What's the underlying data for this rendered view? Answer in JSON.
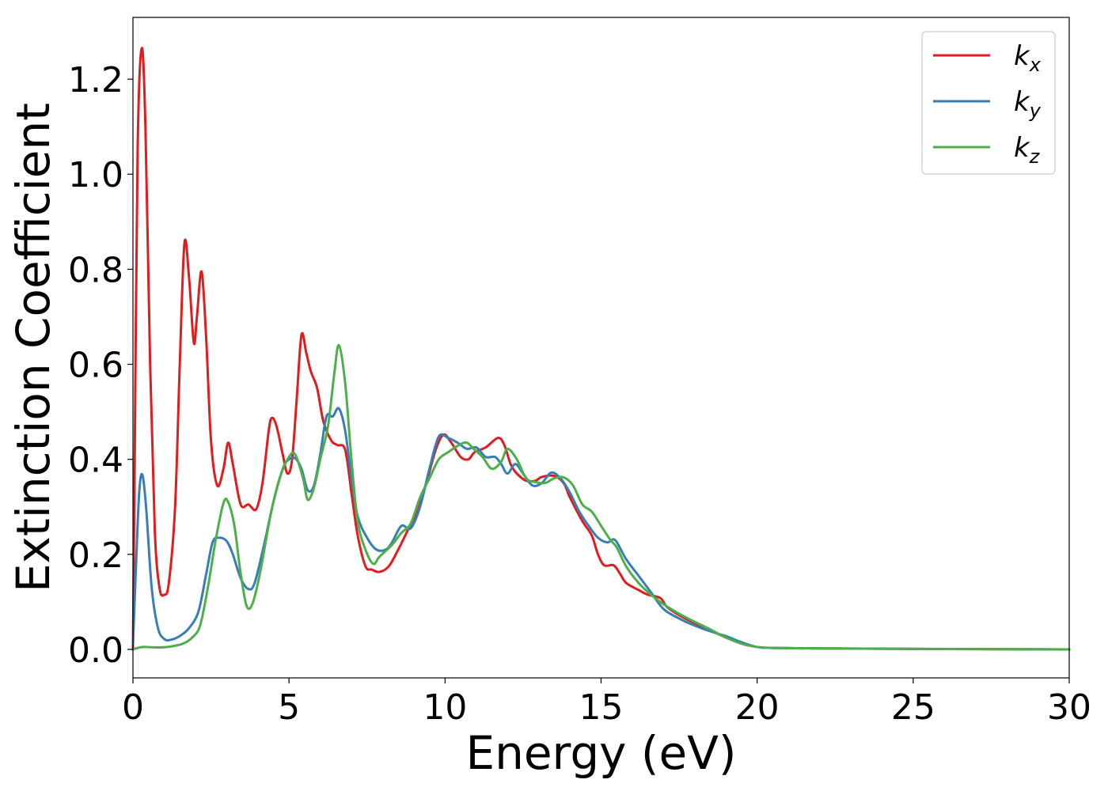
{
  "chart_data": {
    "type": "line",
    "title": "",
    "xlabel": "Energy (eV)",
    "ylabel": "Extinction Coefficient",
    "xlim": [
      0,
      30
    ],
    "ylim": [
      -0.06,
      1.33
    ],
    "xticks": [
      0,
      5,
      10,
      15,
      20,
      25,
      30
    ],
    "xtick_labels": [
      "0",
      "5",
      "10",
      "15",
      "20",
      "25",
      "30"
    ],
    "yticks": [
      0.0,
      0.2,
      0.4,
      0.6,
      0.8,
      1.0,
      1.2
    ],
    "ytick_labels": [
      "0.0",
      "0.2",
      "0.4",
      "0.6",
      "0.8",
      "1.0",
      "1.2"
    ],
    "grid": false,
    "legend_position": "top-right",
    "series": [
      {
        "name": "k_x",
        "legend_main": "k",
        "legend_sub": "x",
        "color": "#e41a1c",
        "points": [
          [
            0,
            0.0
          ],
          [
            0.05,
            0.35
          ],
          [
            0.15,
            1.05
          ],
          [
            0.28,
            1.265
          ],
          [
            0.4,
            1.1
          ],
          [
            0.55,
            0.6
          ],
          [
            0.7,
            0.25
          ],
          [
            0.85,
            0.13
          ],
          [
            1.0,
            0.115
          ],
          [
            1.15,
            0.14
          ],
          [
            1.35,
            0.3
          ],
          [
            1.5,
            0.6
          ],
          [
            1.65,
            0.855
          ],
          [
            1.8,
            0.78
          ],
          [
            1.95,
            0.645
          ],
          [
            2.05,
            0.7
          ],
          [
            2.2,
            0.795
          ],
          [
            2.35,
            0.65
          ],
          [
            2.5,
            0.44
          ],
          [
            2.7,
            0.345
          ],
          [
            2.9,
            0.38
          ],
          [
            3.05,
            0.435
          ],
          [
            3.2,
            0.39
          ],
          [
            3.45,
            0.305
          ],
          [
            3.7,
            0.305
          ],
          [
            3.95,
            0.295
          ],
          [
            4.15,
            0.35
          ],
          [
            4.35,
            0.46
          ],
          [
            4.45,
            0.487
          ],
          [
            4.6,
            0.47
          ],
          [
            4.8,
            0.41
          ],
          [
            4.95,
            0.37
          ],
          [
            5.1,
            0.4
          ],
          [
            5.25,
            0.53
          ],
          [
            5.4,
            0.662
          ],
          [
            5.55,
            0.625
          ],
          [
            5.7,
            0.585
          ],
          [
            5.9,
            0.55
          ],
          [
            6.1,
            0.48
          ],
          [
            6.35,
            0.44
          ],
          [
            6.55,
            0.43
          ],
          [
            6.8,
            0.42
          ],
          [
            7.0,
            0.33
          ],
          [
            7.2,
            0.24
          ],
          [
            7.45,
            0.175
          ],
          [
            7.65,
            0.168
          ],
          [
            7.9,
            0.163
          ],
          [
            8.2,
            0.175
          ],
          [
            8.5,
            0.21
          ],
          [
            8.8,
            0.25
          ],
          [
            9.1,
            0.29
          ],
          [
            9.4,
            0.35
          ],
          [
            9.7,
            0.42
          ],
          [
            9.95,
            0.452
          ],
          [
            10.2,
            0.435
          ],
          [
            10.5,
            0.405
          ],
          [
            10.75,
            0.4
          ],
          [
            10.95,
            0.415
          ],
          [
            11.3,
            0.425
          ],
          [
            11.7,
            0.445
          ],
          [
            11.9,
            0.43
          ],
          [
            12.1,
            0.39
          ],
          [
            12.3,
            0.37
          ],
          [
            12.6,
            0.355
          ],
          [
            12.9,
            0.355
          ],
          [
            13.1,
            0.363
          ],
          [
            13.5,
            0.365
          ],
          [
            13.8,
            0.35
          ],
          [
            14.0,
            0.32
          ],
          [
            14.4,
            0.27
          ],
          [
            14.7,
            0.24
          ],
          [
            14.9,
            0.2
          ],
          [
            15.1,
            0.177
          ],
          [
            15.4,
            0.177
          ],
          [
            15.6,
            0.16
          ],
          [
            15.8,
            0.14
          ],
          [
            16.2,
            0.125
          ],
          [
            16.5,
            0.115
          ],
          [
            16.9,
            0.108
          ],
          [
            17.1,
            0.09
          ],
          [
            17.5,
            0.072
          ],
          [
            18.0,
            0.055
          ],
          [
            18.5,
            0.04
          ],
          [
            19.0,
            0.025
          ],
          [
            19.5,
            0.012
          ],
          [
            20.0,
            0.005
          ],
          [
            20.5,
            0.003
          ],
          [
            22,
            0.002
          ],
          [
            25,
            0.001
          ],
          [
            30,
            0.0
          ]
        ]
      },
      {
        "name": "k_y",
        "legend_main": "k",
        "legend_sub": "y",
        "color": "#377eb8",
        "points": [
          [
            0,
            0.01
          ],
          [
            0.1,
            0.18
          ],
          [
            0.2,
            0.33
          ],
          [
            0.3,
            0.368
          ],
          [
            0.42,
            0.3
          ],
          [
            0.6,
            0.13
          ],
          [
            0.8,
            0.045
          ],
          [
            1.0,
            0.022
          ],
          [
            1.2,
            0.02
          ],
          [
            1.5,
            0.028
          ],
          [
            1.8,
            0.045
          ],
          [
            2.1,
            0.08
          ],
          [
            2.35,
            0.16
          ],
          [
            2.55,
            0.225
          ],
          [
            2.75,
            0.235
          ],
          [
            3.0,
            0.228
          ],
          [
            3.2,
            0.2
          ],
          [
            3.45,
            0.15
          ],
          [
            3.7,
            0.127
          ],
          [
            3.9,
            0.14
          ],
          [
            4.2,
            0.22
          ],
          [
            4.5,
            0.31
          ],
          [
            4.8,
            0.38
          ],
          [
            5.0,
            0.4
          ],
          [
            5.2,
            0.402
          ],
          [
            5.4,
            0.38
          ],
          [
            5.6,
            0.335
          ],
          [
            5.8,
            0.345
          ],
          [
            6.0,
            0.41
          ],
          [
            6.2,
            0.49
          ],
          [
            6.4,
            0.49
          ],
          [
            6.6,
            0.507
          ],
          [
            6.8,
            0.46
          ],
          [
            7.0,
            0.36
          ],
          [
            7.2,
            0.28
          ],
          [
            7.5,
            0.235
          ],
          [
            7.8,
            0.21
          ],
          [
            8.1,
            0.21
          ],
          [
            8.3,
            0.225
          ],
          [
            8.6,
            0.26
          ],
          [
            8.9,
            0.255
          ],
          [
            9.2,
            0.3
          ],
          [
            9.5,
            0.38
          ],
          [
            9.8,
            0.448
          ],
          [
            10.1,
            0.445
          ],
          [
            10.4,
            0.435
          ],
          [
            10.7,
            0.422
          ],
          [
            11.0,
            0.425
          ],
          [
            11.3,
            0.405
          ],
          [
            11.6,
            0.405
          ],
          [
            11.8,
            0.39
          ],
          [
            12.0,
            0.37
          ],
          [
            12.25,
            0.39
          ],
          [
            12.5,
            0.37
          ],
          [
            12.8,
            0.345
          ],
          [
            13.1,
            0.35
          ],
          [
            13.4,
            0.372
          ],
          [
            13.7,
            0.36
          ],
          [
            14.0,
            0.33
          ],
          [
            14.3,
            0.29
          ],
          [
            14.6,
            0.26
          ],
          [
            14.9,
            0.235
          ],
          [
            15.2,
            0.225
          ],
          [
            15.45,
            0.23
          ],
          [
            15.8,
            0.19
          ],
          [
            16.2,
            0.155
          ],
          [
            16.6,
            0.12
          ],
          [
            17.0,
            0.085
          ],
          [
            17.5,
            0.065
          ],
          [
            18.0,
            0.05
          ],
          [
            18.5,
            0.038
          ],
          [
            19.0,
            0.028
          ],
          [
            19.5,
            0.015
          ],
          [
            20.0,
            0.005
          ],
          [
            20.5,
            0.003
          ],
          [
            22,
            0.002
          ],
          [
            25,
            0.001
          ],
          [
            30,
            0.0
          ]
        ]
      },
      {
        "name": "k_z",
        "legend_main": "k",
        "legend_sub": "z",
        "color": "#4daf4a",
        "points": [
          [
            0,
            0.0
          ],
          [
            0.3,
            0.005
          ],
          [
            0.8,
            0.004
          ],
          [
            1.2,
            0.006
          ],
          [
            1.6,
            0.012
          ],
          [
            1.9,
            0.025
          ],
          [
            2.15,
            0.05
          ],
          [
            2.4,
            0.13
          ],
          [
            2.65,
            0.23
          ],
          [
            2.9,
            0.308
          ],
          [
            3.05,
            0.31
          ],
          [
            3.25,
            0.26
          ],
          [
            3.45,
            0.16
          ],
          [
            3.65,
            0.09
          ],
          [
            3.85,
            0.1
          ],
          [
            4.1,
            0.17
          ],
          [
            4.4,
            0.28
          ],
          [
            4.7,
            0.36
          ],
          [
            5.0,
            0.405
          ],
          [
            5.2,
            0.41
          ],
          [
            5.45,
            0.36
          ],
          [
            5.6,
            0.315
          ],
          [
            5.8,
            0.34
          ],
          [
            6.0,
            0.4
          ],
          [
            6.25,
            0.47
          ],
          [
            6.45,
            0.58
          ],
          [
            6.6,
            0.64
          ],
          [
            6.8,
            0.56
          ],
          [
            7.0,
            0.4
          ],
          [
            7.2,
            0.27
          ],
          [
            7.45,
            0.21
          ],
          [
            7.7,
            0.18
          ],
          [
            7.9,
            0.195
          ],
          [
            8.3,
            0.22
          ],
          [
            8.6,
            0.245
          ],
          [
            8.9,
            0.265
          ],
          [
            9.2,
            0.32
          ],
          [
            9.5,
            0.36
          ],
          [
            9.8,
            0.4
          ],
          [
            10.1,
            0.415
          ],
          [
            10.45,
            0.43
          ],
          [
            10.7,
            0.435
          ],
          [
            10.95,
            0.42
          ],
          [
            11.2,
            0.405
          ],
          [
            11.5,
            0.38
          ],
          [
            11.8,
            0.395
          ],
          [
            12.0,
            0.422
          ],
          [
            12.3,
            0.4
          ],
          [
            12.6,
            0.36
          ],
          [
            12.9,
            0.352
          ],
          [
            13.2,
            0.35
          ],
          [
            13.5,
            0.36
          ],
          [
            13.8,
            0.362
          ],
          [
            14.1,
            0.345
          ],
          [
            14.4,
            0.305
          ],
          [
            14.7,
            0.29
          ],
          [
            15.0,
            0.26
          ],
          [
            15.3,
            0.23
          ],
          [
            15.5,
            0.215
          ],
          [
            15.8,
            0.175
          ],
          [
            16.2,
            0.14
          ],
          [
            16.6,
            0.115
          ],
          [
            17.0,
            0.095
          ],
          [
            17.5,
            0.075
          ],
          [
            18.0,
            0.058
          ],
          [
            18.5,
            0.042
          ],
          [
            19.0,
            0.025
          ],
          [
            19.5,
            0.012
          ],
          [
            20.0,
            0.005
          ],
          [
            20.5,
            0.003
          ],
          [
            22,
            0.002
          ],
          [
            25,
            0.001
          ],
          [
            30,
            0.0
          ]
        ]
      }
    ]
  }
}
